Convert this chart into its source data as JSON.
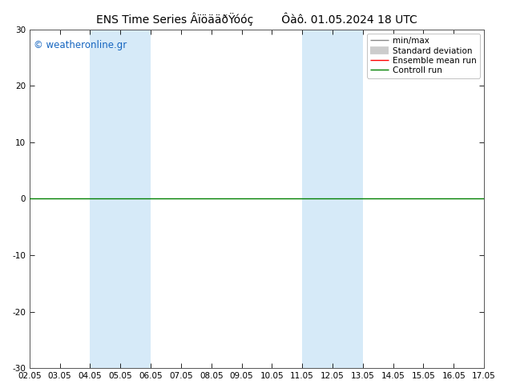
{
  "title": "ENS Time Series ÂïöääðŸóóç",
  "title_right": "Ôàô. 01.05.2024 18 UTC",
  "watermark": "© weatheronline.gr",
  "xlabel_ticks": [
    "02.05",
    "03.05",
    "04.05",
    "05.05",
    "06.05",
    "07.05",
    "08.05",
    "09.05",
    "10.05",
    "11.05",
    "12.05",
    "13.05",
    "14.05",
    "15.05",
    "16.05",
    "17.05"
  ],
  "ylabel_ticks": [
    -30,
    -20,
    -10,
    0,
    10,
    20,
    30
  ],
  "ylim": [
    -30,
    30
  ],
  "xlim_start": 0,
  "xlim_end": 15,
  "n_xticks": 16,
  "highlight_bands": [
    {
      "xstart": 2,
      "xend": 4,
      "color": "#d6eaf8"
    },
    {
      "xstart": 9,
      "xend": 11,
      "color": "#d6eaf8"
    }
  ],
  "hline_y": 0,
  "hline_color": "#008000",
  "hline_lw": 1.0,
  "legend_entries": [
    {
      "label": "min/max",
      "color": "#888888",
      "lw": 1.0,
      "style": "line"
    },
    {
      "label": "Standard deviation",
      "color": "#cccccc",
      "lw": 7,
      "style": "line"
    },
    {
      "label": "Ensemble mean run",
      "color": "#ff0000",
      "lw": 1.0,
      "style": "line"
    },
    {
      "label": "Controll run",
      "color": "#008000",
      "lw": 1.0,
      "style": "line"
    }
  ],
  "bg_color": "#ffffff",
  "spine_color": "#555555",
  "title_fontsize": 10,
  "tick_fontsize": 7.5,
  "watermark_fontsize": 8.5,
  "watermark_color": "#1565c0"
}
